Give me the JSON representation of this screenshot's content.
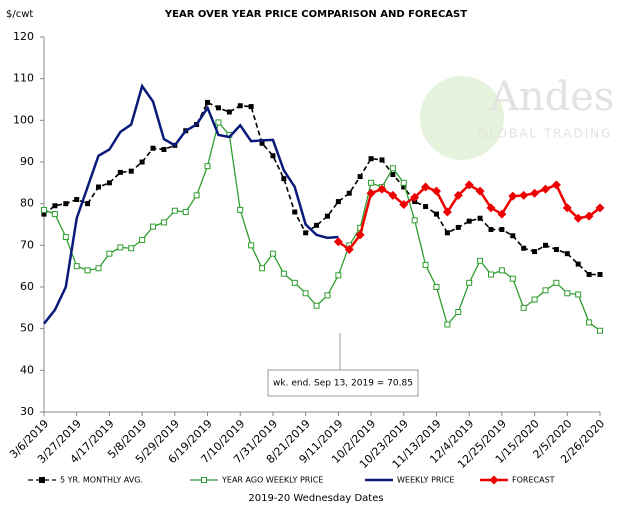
{
  "chart_data": {
    "type": "line",
    "title": "YEAR OVER YEAR PRICE COMPARISON AND FORECAST",
    "y_unit": "$/cwt",
    "x_label": "2019-20 Wednesday Dates",
    "annotation": "wk. end. Sep 13, 2019  = 70.85",
    "watermark": "Andes",
    "watermark_sub": "GLOBAL TRADING",
    "categories": [
      "3/6/2019",
      null,
      null,
      "3/27/2019",
      null,
      null,
      "4/17/2019",
      null,
      null,
      "5/8/2019",
      null,
      null,
      "5/29/2019",
      null,
      null,
      "6/19/2019",
      null,
      null,
      "7/10/2019",
      null,
      null,
      "7/31/2019",
      null,
      null,
      "8/21/2019",
      null,
      null,
      "9/11/2019",
      null,
      null,
      "10/2/2019",
      null,
      null,
      "10/23/2019",
      null,
      null,
      "11/13/2019",
      null,
      null,
      "12/4/2019",
      null,
      null,
      "12/25/2019",
      null,
      null,
      "1/15/2020",
      null,
      null,
      "2/5/2020",
      null,
      null,
      "2/26/2020"
    ],
    "ylim": [
      30,
      120
    ],
    "yticks": [
      30,
      40,
      50,
      60,
      70,
      80,
      90,
      100,
      110,
      120
    ],
    "grid": false,
    "legend": "bottom",
    "series": [
      {
        "name": "5 YR. MONTHLY AVG.",
        "color": "#000000",
        "line_style": "dashed",
        "marker": "square",
        "values": [
          77.5,
          79.5,
          80,
          81,
          80,
          84,
          85,
          87.5,
          87.8,
          90,
          93.3,
          93,
          94,
          97.5,
          99,
          104.3,
          103,
          102,
          103.5,
          103.3,
          94.5,
          91.5,
          86,
          78,
          73,
          74.8,
          77,
          80.5,
          82.5,
          86.5,
          90.8,
          90.5,
          87,
          84,
          80.5,
          79.3,
          77.5,
          73,
          74.3,
          75.8,
          76.5,
          73.8,
          73.8,
          72.3,
          69.3,
          68.5,
          70,
          69,
          68,
          65.5,
          63,
          63
        ]
      },
      {
        "name": "YEAR AGO WEEKLY PRICE",
        "color": "#2e9e2e",
        "line_style": "solid",
        "marker": "hollow-square",
        "values": [
          78.5,
          77.5,
          72,
          65,
          64,
          64.5,
          68,
          69.5,
          69.3,
          71.3,
          74.5,
          75.5,
          78.3,
          78,
          82,
          89,
          99.5,
          96.5,
          78.5,
          70,
          64.5,
          68,
          63.2,
          61,
          58.5,
          55.5,
          58,
          62.8,
          70,
          74.2,
          85,
          84,
          88.5,
          85,
          76,
          65.3,
          60,
          51,
          54,
          61,
          66.3,
          63,
          64,
          62,
          55,
          57,
          59.2,
          61,
          58.5,
          58.2,
          51.5,
          49.5
        ]
      },
      {
        "name": "WEEKLY PRICE",
        "color": "#0a1a7a",
        "line_style": "solid",
        "marker": "none",
        "values": [
          51.2,
          54.5,
          60,
          76.5,
          84,
          91.5,
          93,
          97.2,
          99,
          108.2,
          104.5,
          95.5,
          94,
          97.5,
          99,
          103,
          96.5,
          96,
          98.8,
          95,
          95.2,
          95.3,
          88,
          84,
          75,
          72.5,
          71.8,
          72,
          null,
          null,
          null,
          null,
          null,
          null,
          null,
          null,
          null,
          null,
          null,
          null,
          null,
          null,
          null,
          null,
          null,
          null,
          null,
          null,
          null,
          null,
          null,
          null
        ]
      },
      {
        "name": "FORECAST",
        "color": "#ee0000",
        "line_style": "solid",
        "marker": "diamond",
        "values": [
          null,
          null,
          null,
          null,
          null,
          null,
          null,
          null,
          null,
          null,
          null,
          null,
          null,
          null,
          null,
          null,
          null,
          null,
          null,
          null,
          null,
          null,
          null,
          null,
          null,
          null,
          null,
          70.85,
          69,
          72.5,
          82.5,
          83.5,
          82,
          79.8,
          81.5,
          84,
          83,
          78,
          82,
          84.5,
          83,
          79,
          77.5,
          81.8,
          82,
          82.5,
          83.5,
          84.5,
          79,
          76.5,
          77,
          79
        ]
      }
    ]
  }
}
